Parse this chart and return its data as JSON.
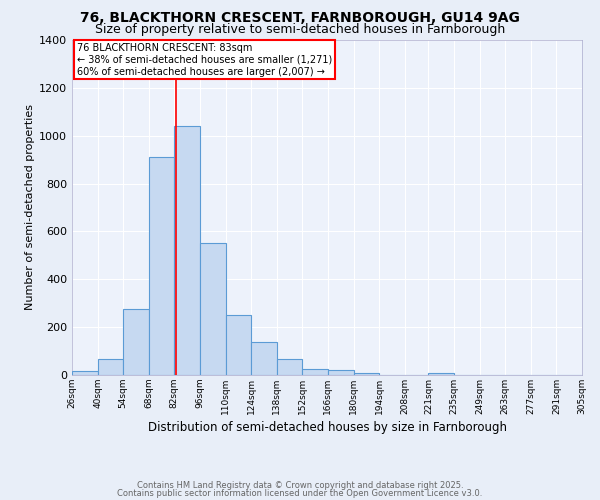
{
  "title1": "76, BLACKTHORN CRESCENT, FARNBOROUGH, GU14 9AG",
  "title2": "Size of property relative to semi-detached houses in Farnborough",
  "xlabel": "Distribution of semi-detached houses by size in Farnborough",
  "ylabel": "Number of semi-detached properties",
  "bin_edges": [
    26,
    40,
    54,
    68,
    82,
    96,
    110,
    124,
    138,
    152,
    166,
    180,
    194,
    208,
    221,
    235,
    249,
    263,
    277,
    291,
    305
  ],
  "bar_heights": [
    15,
    65,
    275,
    910,
    1040,
    550,
    250,
    140,
    65,
    25,
    20,
    10,
    0,
    0,
    10,
    0,
    0,
    0,
    0,
    0
  ],
  "bar_color": "#c6d9f1",
  "bar_edge_color": "#5b9bd5",
  "property_size": 83,
  "red_line_color": "red",
  "annotation_text": "76 BLACKTHORN CRESCENT: 83sqm\n← 38% of semi-detached houses are smaller (1,271)\n60% of semi-detached houses are larger (2,007) →",
  "annotation_box_color": "white",
  "annotation_box_edge": "red",
  "footer1": "Contains HM Land Registry data © Crown copyright and database right 2025.",
  "footer2": "Contains public sector information licensed under the Open Government Licence v3.0.",
  "ylim": [
    0,
    1400
  ],
  "background_color": "#e8eef8",
  "plot_bg_color": "#edf2fb",
  "grid_color": "white",
  "title1_fontsize": 10,
  "title2_fontsize": 9,
  "tick_label_fontsize": 6.5,
  "ylabel_fontsize": 8,
  "xlabel_fontsize": 8.5,
  "footer_fontsize": 6,
  "footer_color": "#666666"
}
